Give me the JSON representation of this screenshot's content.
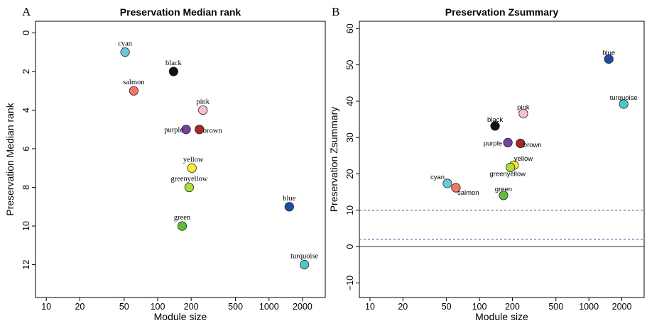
{
  "chart_data": [
    {
      "type": "scatter",
      "panel_label": "A",
      "title": "Preservation Median rank",
      "xlabel": "Module size",
      "ylabel": "Preservation Median rank",
      "x_scale": "log",
      "xlim": [
        8,
        3200
      ],
      "ylim": [
        13.7,
        -0.6
      ],
      "y_inverted": true,
      "xticks": [
        10,
        20,
        50,
        100,
        200,
        500,
        1000,
        2000
      ],
      "xtick_labels": [
        "10",
        "20",
        "50",
        "100",
        "200",
        "500",
        "1000",
        "2000"
      ],
      "yticks": [
        0,
        2,
        4,
        6,
        8,
        10,
        12
      ],
      "ytick_labels": [
        "0",
        "2",
        "4",
        "6",
        "8",
        "10",
        "12"
      ],
      "grid": false,
      "legend": "none",
      "hlines": [],
      "points": [
        {
          "name": "cyan",
          "x": 51,
          "y": 1,
          "color": "#6cc5d8",
          "label": "cyan"
        },
        {
          "name": "black",
          "x": 139,
          "y": 2,
          "color": "#111111",
          "label": "black"
        },
        {
          "name": "salmon",
          "x": 61,
          "y": 3,
          "color": "#f2776a",
          "label": "salmon"
        },
        {
          "name": "pink",
          "x": 255,
          "y": 4,
          "color": "#f9c0cb",
          "label": "pink"
        },
        {
          "name": "purple",
          "x": 180,
          "y": 5,
          "color": "#7540a0",
          "label": "purple"
        },
        {
          "name": "brown",
          "x": 237,
          "y": 5,
          "color": "#a52a2a",
          "label": "brown"
        },
        {
          "name": "yellow",
          "x": 203,
          "y": 7,
          "color": "#f5f02c",
          "label": "yellow"
        },
        {
          "name": "greenyellow",
          "x": 192,
          "y": 8,
          "color": "#b0dc3a",
          "label": "greenyellow"
        },
        {
          "name": "blue",
          "x": 1520,
          "y": 9,
          "color": "#1f4ca8",
          "label": "blue"
        },
        {
          "name": "green",
          "x": 166,
          "y": 10,
          "color": "#5cbf3c",
          "label": "green"
        },
        {
          "name": "turquoise",
          "x": 2080,
          "y": 12,
          "color": "#4ec9bf",
          "label": "turquoise"
        }
      ]
    },
    {
      "type": "scatter",
      "panel_label": "B",
      "title": "Preservation Zsummary",
      "xlabel": "Module size",
      "ylabel": "Preservation Zsummary",
      "x_scale": "log",
      "xlim": [
        8,
        3200
      ],
      "ylim": [
        -14,
        62
      ],
      "y_inverted": false,
      "xticks": [
        10,
        20,
        50,
        100,
        200,
        500,
        1000,
        2000
      ],
      "xtick_labels": [
        "10",
        "20",
        "50",
        "100",
        "200",
        "500",
        "1000",
        "2000"
      ],
      "yticks": [
        -10,
        0,
        10,
        20,
        30,
        40,
        50,
        60
      ],
      "ytick_labels": [
        "−10",
        "0",
        "10",
        "20",
        "30",
        "40",
        "50",
        "60"
      ],
      "grid": false,
      "legend": "none",
      "hlines": [
        {
          "y": 0,
          "style": "solid",
          "color": "#333333"
        },
        {
          "y": 2,
          "style": "dashed",
          "color": "#2a5aa8"
        },
        {
          "y": 10,
          "style": "dashed",
          "color": "#555555"
        }
      ],
      "points": [
        {
          "name": "blue",
          "x": 1520,
          "y": 51.6,
          "color": "#1f4ca8",
          "label": "blue"
        },
        {
          "name": "turquoise",
          "x": 2080,
          "y": 39.2,
          "color": "#4ec9bf",
          "label": "turquoise"
        },
        {
          "name": "pink",
          "x": 252,
          "y": 36.6,
          "color": "#f9c0cb",
          "label": "pink"
        },
        {
          "name": "black",
          "x": 139,
          "y": 33.2,
          "color": "#111111",
          "label": "black"
        },
        {
          "name": "purple",
          "x": 182,
          "y": 28.6,
          "color": "#7540a0",
          "label": "purple"
        },
        {
          "name": "brown",
          "x": 237,
          "y": 28.4,
          "color": "#a52a2a",
          "label": "brown"
        },
        {
          "name": "yellow",
          "x": 207,
          "y": 22.4,
          "color": "#f5f02c",
          "label": "yellow"
        },
        {
          "name": "greenyellow",
          "x": 192,
          "y": 21.8,
          "color": "#b0dc3a",
          "label": "greenyellow"
        },
        {
          "name": "cyan",
          "x": 51,
          "y": 17.4,
          "color": "#6cc5d8",
          "label": "cyan"
        },
        {
          "name": "salmon",
          "x": 61,
          "y": 16.2,
          "color": "#f2776a",
          "label": "salmon"
        },
        {
          "name": "green",
          "x": 166,
          "y": 14.1,
          "color": "#5cbf3c",
          "label": "green"
        }
      ]
    }
  ]
}
